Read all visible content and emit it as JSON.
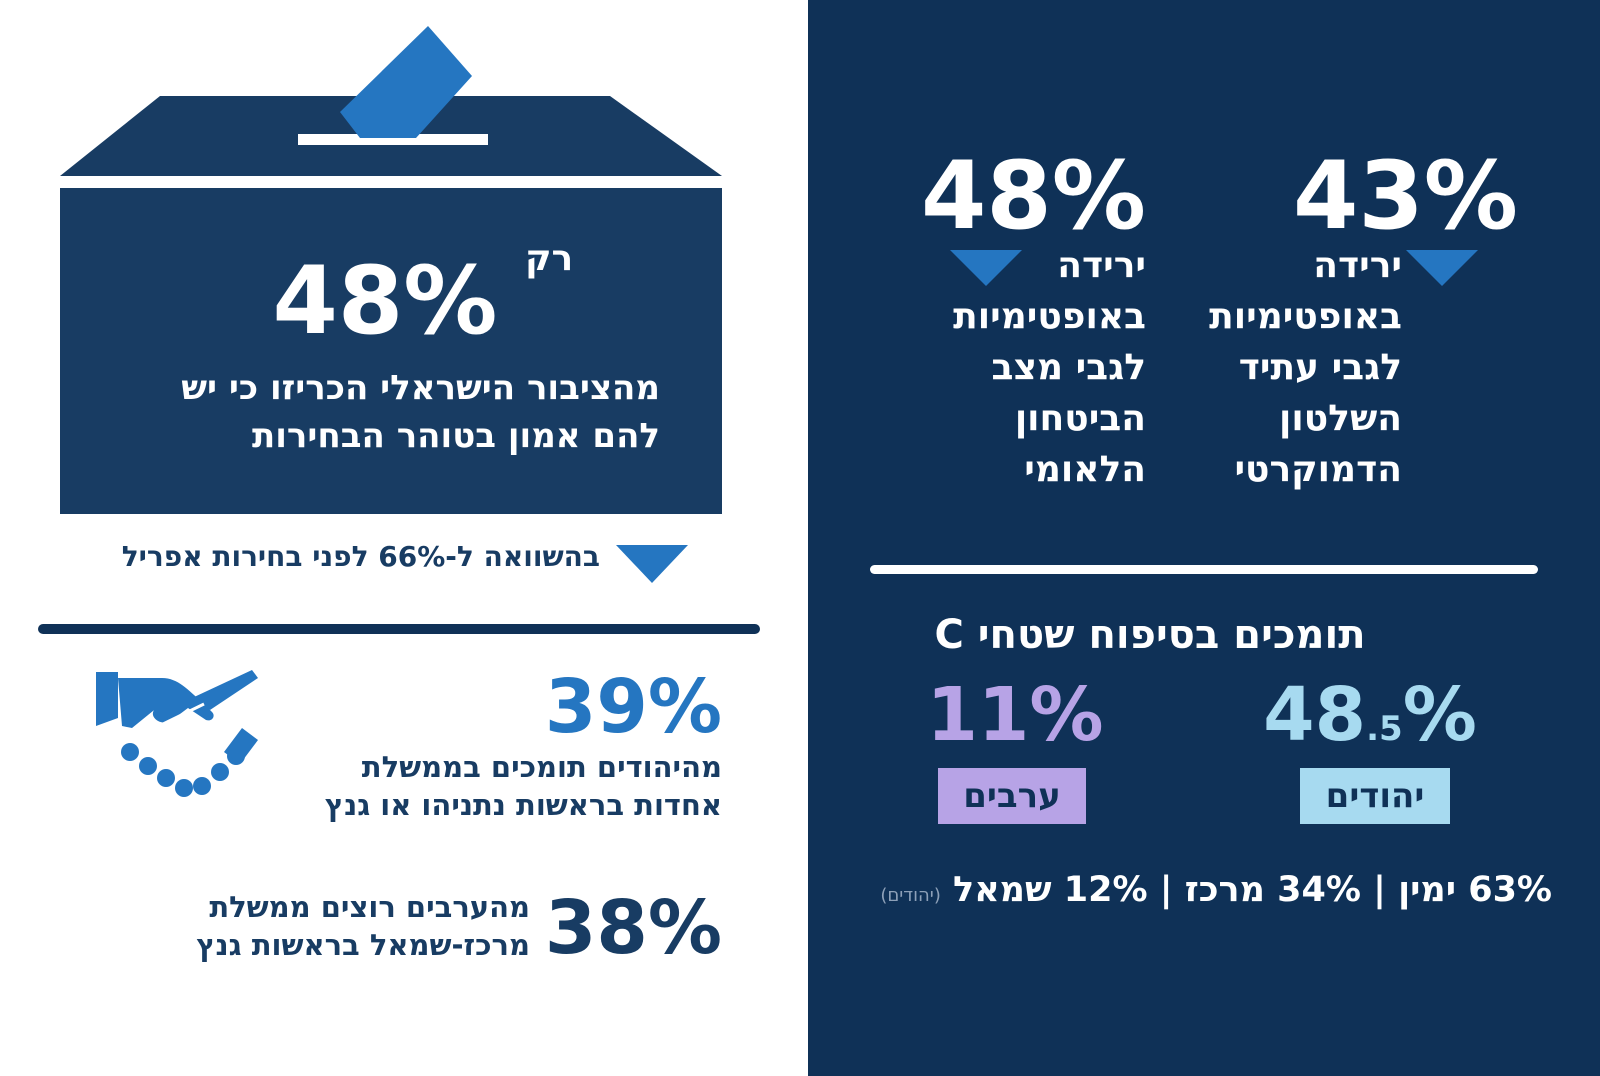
{
  "colors": {
    "dark_navy": "#0f3157",
    "box_navy": "#183c63",
    "accent_blue": "#2576c1",
    "light_blue": "#a7daf0",
    "lavender": "#b7a3e6",
    "white": "#ffffff"
  },
  "icons": [
    "ballot-box-icon",
    "down-triangle-icon",
    "handshake-icon"
  ],
  "ballot": {
    "only_label": "רק",
    "percent": "48%",
    "text_line1": "מהציבור הישראלי הכריזו כי יש",
    "text_line2": "להם אמון בטוהר הבחירות",
    "comparison": "בהשוואה ל-66% לפני בחירות אפריל"
  },
  "unity": {
    "percent": "39%",
    "line1": "מהיהודים תומכים בממשלת",
    "line2": "אחדות בראשות נתניהו או גנץ"
  },
  "arabs": {
    "percent": "38%",
    "line1": "מהערבים רוצים ממשלת",
    "line2": "מרכז-שמאל בראשות גנץ"
  },
  "optimism_democracy": {
    "percent": "43%",
    "lines": [
      "ירידה",
      "באופטימיות",
      "לגבי עתיד",
      "השלטון",
      "הדמוקרטי"
    ]
  },
  "optimism_security": {
    "percent": "48%",
    "lines": [
      "ירידה",
      "באופטימיות",
      "לגבי  מצב",
      "הביטחון",
      "הלאומי"
    ]
  },
  "annexation": {
    "title": "תומכים בסיפוח שטחי C",
    "jews_percent_main": "48",
    "jews_percent_decimal": ".5",
    "jews_percent_sign": "%",
    "jews_label": "יהודים",
    "arabs_percent": "11%",
    "arabs_label": "ערבים"
  },
  "politics": {
    "right": "63% ימין",
    "center": "34% מרכז",
    "left": "12% שמאל",
    "separator": "|",
    "note": "(יהודים)"
  }
}
